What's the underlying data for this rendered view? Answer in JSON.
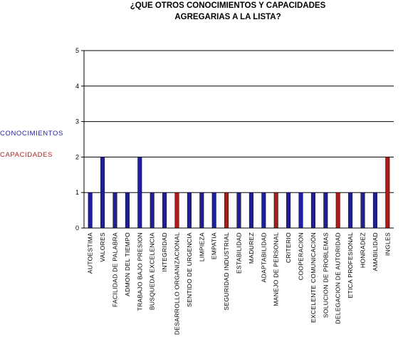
{
  "chart_data": {
    "type": "bar",
    "title_lines": [
      "¿QUE OTROS CONOCIMIENTOS Y CAPACIDADES",
      "AGREGARIAS A LA LISTA?"
    ],
    "categories": [
      "AUTOESTIMA",
      "VALORES",
      "FACILIDAD DE PALABRA",
      "ADMON DEL TIEMPO",
      "TRABAJO BAJO PRESION",
      "BUSQUEDA EXCELENCIA",
      "INTEGRIDAD",
      "DESARROLLO ORGANIZACIONAL",
      "SENTIDO DE URGENCIA",
      "LIMPIEZA",
      "EMPATIA",
      "SEGURIDAD INDUSTRIAL",
      "ESTABILIDAD",
      "MADUREZ",
      "ADAPTABILIDAD",
      "MANEJO DE PERSONAL",
      "CRITERIO",
      "COOPERACION",
      "EXCELENTE COMUNICACIÓN",
      "SOLUCION DE PROBLEMAS",
      "DELEGACION DE AUTORIDAD",
      "ETICA PROFESIONAL",
      "HONRADEZ",
      "AMABILIDAD",
      "INGLES"
    ],
    "values": [
      1,
      2,
      1,
      1,
      2,
      1,
      1,
      1,
      1,
      1,
      1,
      1,
      1,
      1,
      1,
      1,
      1,
      1,
      1,
      1,
      1,
      1,
      1,
      1,
      2
    ],
    "series_of_category": [
      "CONOCIMIENTOS",
      "CONOCIMIENTOS",
      "CONOCIMIENTOS",
      "CONOCIMIENTOS",
      "CONOCIMIENTOS",
      "CONOCIMIENTOS",
      "CONOCIMIENTOS",
      "CAPACIDADES",
      "CONOCIMIENTOS",
      "CONOCIMIENTOS",
      "CONOCIMIENTOS",
      "CAPACIDADES",
      "CONOCIMIENTOS",
      "CONOCIMIENTOS",
      "CONOCIMIENTOS",
      "CAPACIDADES",
      "CONOCIMIENTOS",
      "CONOCIMIENTOS",
      "CONOCIMIENTOS",
      "CONOCIMIENTOS",
      "CAPACIDADES",
      "CONOCIMIENTOS",
      "CONOCIMIENTOS",
      "CONOCIMIENTOS",
      "CAPACIDADES"
    ],
    "legend": [
      {
        "name": "CONOCIMIENTOS",
        "color": "#1f1f9c"
      },
      {
        "name": "CAPACIDADES",
        "color": "#b22222"
      }
    ],
    "legend_placement": "left",
    "ylim": [
      0,
      5
    ],
    "yticks": [
      0,
      1,
      2,
      3,
      4,
      5
    ],
    "grid": true,
    "colors": {
      "CONOCIMIENTOS": "#1f1f9c",
      "CAPACIDADES": "#a81c1c",
      "gridline": "#000000",
      "background": "#ffffff"
    }
  }
}
